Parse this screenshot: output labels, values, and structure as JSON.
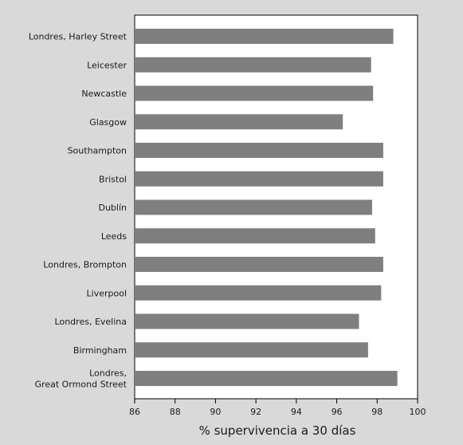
{
  "chart_data": {
    "type": "bar",
    "orientation": "horizontal",
    "categories": [
      "Londres, Harley Street",
      "Leicester",
      "Newcastle",
      "Glasgow",
      "Southampton",
      "Bristol",
      "Dublín",
      "Leeds",
      "Londres, Brompton",
      "Liverpool",
      "Londres, Evelina",
      "Birmingham",
      "Londres,\nGreat Ormond Street"
    ],
    "values": [
      98.8,
      97.7,
      97.8,
      96.3,
      98.3,
      98.3,
      97.75,
      97.9,
      98.3,
      98.2,
      97.1,
      97.55,
      99.0
    ],
    "xlabel": "% supervivencia a 30 días",
    "ylabel": "",
    "xlim": [
      86,
      100
    ],
    "xticks": [
      86,
      88,
      90,
      92,
      94,
      96,
      98,
      100
    ],
    "grid": false,
    "colors": {
      "background": "#d9d9d9",
      "plot_background": "#ffffff",
      "bar": "#7f7f7f",
      "axis": "#000000"
    }
  }
}
